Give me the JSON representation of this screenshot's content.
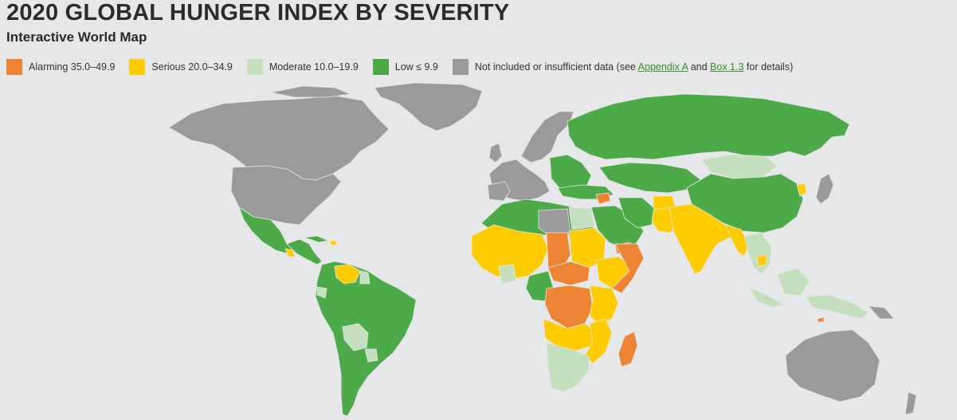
{
  "header": {
    "title": "2020 GLOBAL HUNGER INDEX BY SEVERITY",
    "subtitle": "Interactive World Map"
  },
  "legend": {
    "items": [
      {
        "label": "Alarming 35.0–49.9",
        "color": "#ec8434"
      },
      {
        "label": "Serious 20.0–34.9",
        "color": "#ffcc00"
      },
      {
        "label": "Moderate 10.0–19.9",
        "color": "#c5e0bf"
      },
      {
        "label": "Low ≤ 9.9",
        "color": "#4daa48"
      }
    ],
    "na": {
      "color": "#9a9a9a",
      "prefix": "Not included or insufficient data (see ",
      "link1": "Appendix A",
      "mid": " and ",
      "link2": "Box 1.3",
      "suffix": " for details)"
    }
  },
  "colors": {
    "background": "#e6e7e8",
    "alarming": "#ec8434",
    "serious": "#ffcc00",
    "moderate": "#c5e0bf",
    "low": "#4daa48",
    "not_included": "#9a9a9a"
  }
}
